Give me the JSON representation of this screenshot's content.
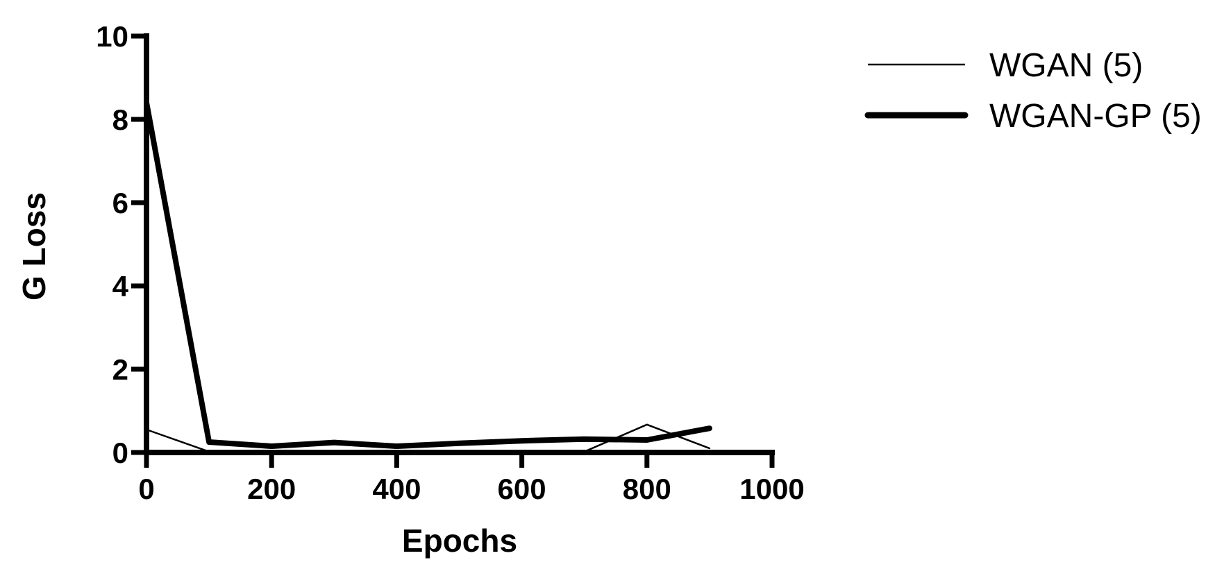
{
  "chart_data": {
    "type": "line",
    "title": "",
    "xlabel": "Epochs",
    "ylabel": "G Loss",
    "xlim": [
      0,
      1000
    ],
    "ylim": [
      0,
      10
    ],
    "x_ticks": [
      0,
      200,
      400,
      600,
      800,
      1000
    ],
    "y_ticks": [
      0,
      2,
      4,
      6,
      8,
      10
    ],
    "grid": false,
    "legend_position": "top-right",
    "x": [
      0,
      100,
      200,
      300,
      400,
      500,
      600,
      700,
      800,
      900
    ],
    "series": [
      {
        "name": "WGAN (5)",
        "color": "#000000",
        "line_weight": "thin",
        "values": [
          0.55,
          0.02,
          0.01,
          0.01,
          0.01,
          0.01,
          0.01,
          0.02,
          0.67,
          0.1
        ]
      },
      {
        "name": "WGAN-GP (5)",
        "color": "#000000",
        "line_weight": "thick",
        "values": [
          8.4,
          0.25,
          0.15,
          0.24,
          0.15,
          0.22,
          0.28,
          0.32,
          0.3,
          0.58
        ]
      }
    ]
  }
}
